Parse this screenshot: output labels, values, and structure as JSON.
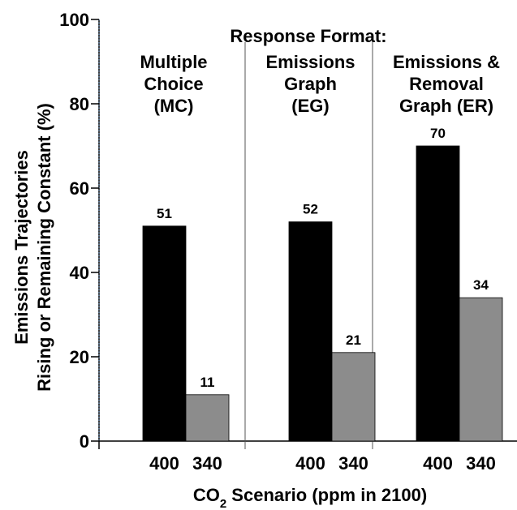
{
  "chart_data": {
    "type": "bar",
    "title": "Response Format:",
    "xlabel": {
      "prefix": "CO",
      "subscript": "2",
      "suffix": " Scenario (ppm in 2100)"
    },
    "ylabel": [
      "Emissions Trajectories",
      "Rising or Remaining Constant (%)"
    ],
    "ylim": [
      0,
      100
    ],
    "yticks": [
      0,
      20,
      40,
      60,
      80,
      100
    ],
    "categories": [
      "400",
      "340"
    ],
    "colors": {
      "400": "#000000",
      "340": "#8c8c8c"
    },
    "groups": [
      {
        "name_lines": [
          "Multiple",
          "Choice",
          "(MC)"
        ],
        "values": [
          51,
          11
        ]
      },
      {
        "name_lines": [
          "Emissions",
          "Graph",
          "(EG)"
        ],
        "values": [
          52,
          21
        ]
      },
      {
        "name_lines": [
          "Emissions &",
          "Removal",
          "Graph (ER)"
        ],
        "values": [
          70,
          34
        ]
      }
    ],
    "grid": false,
    "legend": "none"
  }
}
